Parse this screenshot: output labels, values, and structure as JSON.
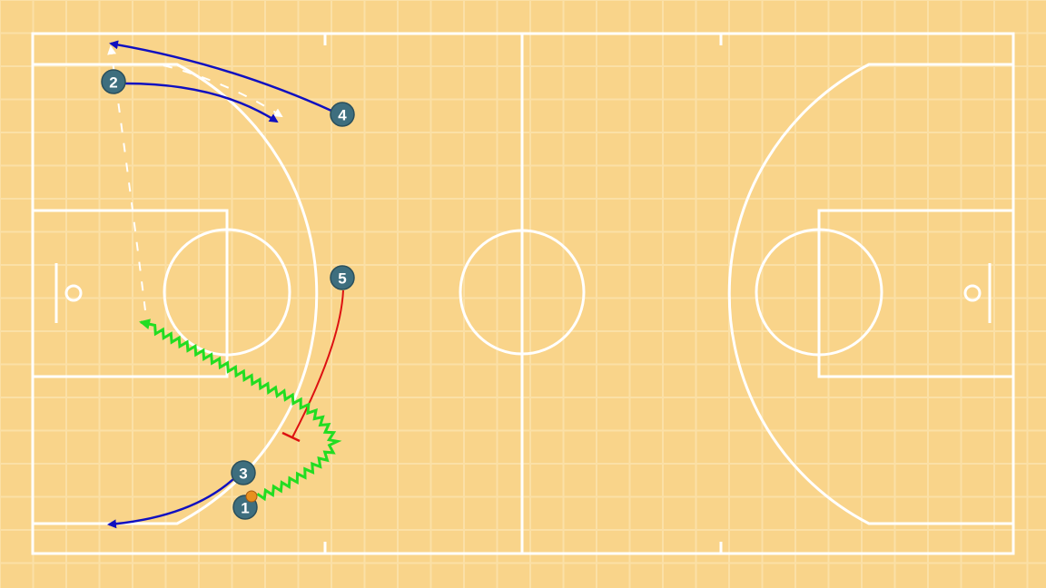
{
  "colors": {
    "court": "#F9D48A",
    "grid": "#FBE0A6",
    "lines": "#FFFFFF",
    "player": "#3E6E7E",
    "cut": "#1010C0",
    "dribble": "#22DD22",
    "screen": "#DD1111",
    "ball": "#E8901E"
  },
  "players": [
    {
      "label": "1",
      "role": "ball-handler"
    },
    {
      "label": "2",
      "role": "cutter"
    },
    {
      "label": "3",
      "role": "cutter"
    },
    {
      "label": "4",
      "role": "cutter"
    },
    {
      "label": "5",
      "role": "screener"
    }
  ],
  "actions": [
    {
      "player": "1",
      "type": "dribble"
    },
    {
      "player": "2",
      "type": "cut"
    },
    {
      "player": "3",
      "type": "cut"
    },
    {
      "player": "4",
      "type": "cut"
    },
    {
      "player": "5",
      "type": "screen"
    },
    {
      "type": "pass"
    }
  ]
}
